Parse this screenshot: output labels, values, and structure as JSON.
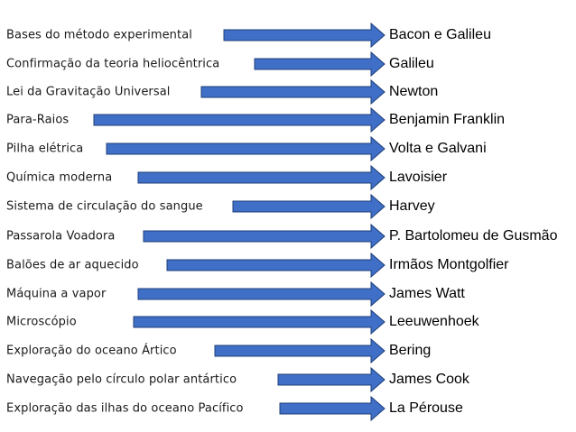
{
  "colors": {
    "arrow_fill": "#3f6fc6",
    "arrow_stroke": "#1f3f7a",
    "left_text": "#1a1a1a",
    "right_text": "#000000",
    "background": "#ffffff"
  },
  "rows": [
    {
      "topic": "Bases do método experimental",
      "person": "Bacon e Galileu"
    },
    {
      "topic": "Confirmação da teoria heliocêntrica",
      "person": "Galileu"
    },
    {
      "topic": "Lei da Gravitação Universal",
      "person": "Newton"
    },
    {
      "topic": "Para-Raios",
      "person": "Benjamin Franklin"
    },
    {
      "topic": "Pilha elétrica",
      "person": "Volta e Galvani"
    },
    {
      "topic": "Química moderna",
      "person": "Lavoisier"
    },
    {
      "topic": "Sistema de circulação do sangue",
      "person": "Harvey"
    },
    {
      "topic": "Passarola Voadora",
      "person": "P. Bartolomeu de Gusmão"
    },
    {
      "topic": "Balões de ar aquecido",
      "person": "Irmãos Montgolfier"
    },
    {
      "topic": "Máquina a vapor",
      "person": "James Watt"
    },
    {
      "topic": "Microscópio",
      "person": "Leeuwenhoek"
    },
    {
      "topic": "Exploração do oceano Ártico",
      "person": "Bering"
    },
    {
      "topic": "Navegação pelo círculo polar antártico",
      "person": "James Cook"
    },
    {
      "topic": "Exploração das ilhas do oceano Pacífico",
      "person": "La Pérouse"
    }
  ]
}
